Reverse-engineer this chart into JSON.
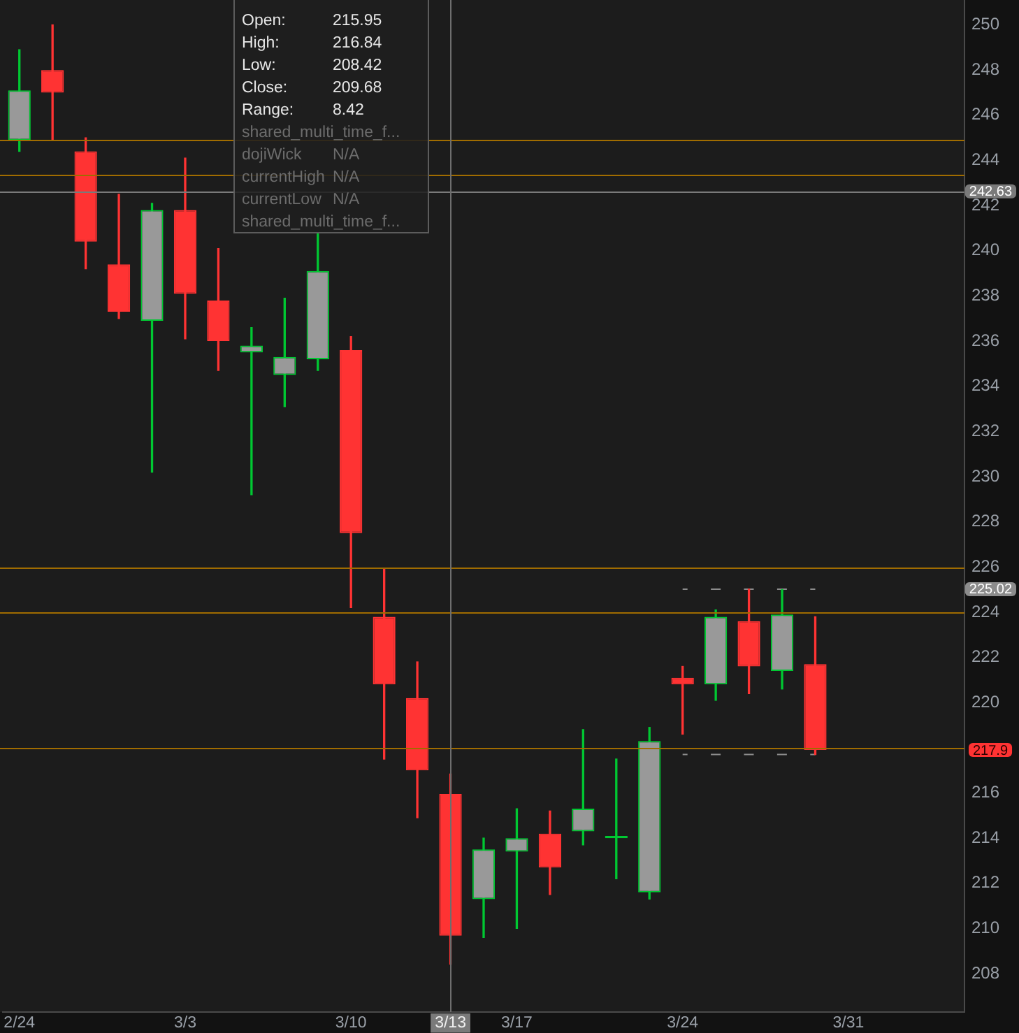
{
  "chart_data": {
    "type": "candlestick",
    "categories": [
      "2/24",
      null,
      null,
      null,
      null,
      "3/3",
      null,
      null,
      null,
      null,
      "3/10",
      null,
      null,
      "3/13",
      null,
      "3/17",
      null,
      null,
      null,
      null,
      "3/24",
      null,
      null,
      null,
      null,
      "3/31",
      null,
      null,
      null
    ],
    "ohlc": [
      [
        244.9,
        248.9,
        244.4,
        247.1
      ],
      [
        248.0,
        250.0,
        244.9,
        247.0
      ],
      [
        244.4,
        245.0,
        239.2,
        240.4
      ],
      [
        239.4,
        242.5,
        237.0,
        237.3
      ],
      [
        236.9,
        242.1,
        230.2,
        241.8
      ],
      [
        241.8,
        244.1,
        236.1,
        238.1
      ],
      [
        237.8,
        240.1,
        234.7,
        236.0
      ],
      [
        235.5,
        236.6,
        229.2,
        235.8
      ],
      [
        234.5,
        237.9,
        233.1,
        235.3
      ],
      [
        235.2,
        240.8,
        234.7,
        239.1
      ],
      [
        235.6,
        236.2,
        224.2,
        227.5
      ],
      [
        223.8,
        225.9,
        217.5,
        220.8
      ],
      [
        220.2,
        221.8,
        214.9,
        217.0
      ],
      [
        215.95,
        216.84,
        208.42,
        209.68
      ],
      [
        211.3,
        214.0,
        209.6,
        213.5
      ],
      [
        213.4,
        215.3,
        210.0,
        214.0
      ],
      [
        214.2,
        215.2,
        211.5,
        212.7
      ],
      [
        214.3,
        218.8,
        213.7,
        215.3
      ],
      [
        214.0,
        217.5,
        212.2,
        214.1
      ],
      [
        211.6,
        218.9,
        211.3,
        218.3
      ],
      [
        221.1,
        221.6,
        218.6,
        220.8
      ],
      [
        220.8,
        224.1,
        220.1,
        223.8
      ],
      [
        223.6,
        225.02,
        220.4,
        221.6
      ],
      [
        221.4,
        225.0,
        220.6,
        223.9
      ],
      [
        221.7,
        223.8,
        217.7,
        217.9
      ],
      null,
      null,
      null,
      null
    ],
    "colors": [
      "#00c832",
      "#ff3333",
      "#ff3333",
      "#ff3333",
      "#00c832",
      "#ff3333",
      "#ff3333",
      "#00c832",
      "#00c832",
      "#00c832",
      "#ff3333",
      "#ff3333",
      "#ff3333",
      "#ff3333",
      "#00c832",
      "#00c832",
      "#ff3333",
      "#00c832",
      "#00c832",
      "#00c832",
      "#ff3333",
      "#00c832",
      "#ff3333",
      "#00c832",
      "#ff3333",
      null,
      null,
      null,
      null
    ],
    "series": [
      {
        "type": "line",
        "color": "#8c8c8c",
        "line_style": "dashed",
        "values": [
          null,
          null,
          null,
          null,
          null,
          null,
          null,
          null,
          null,
          null,
          null,
          null,
          null,
          null,
          null,
          null,
          null,
          null,
          null,
          null,
          225.02,
          225.02,
          225.02,
          225.02,
          225.02,
          null,
          null,
          null,
          null
        ]
      },
      {
        "type": "line",
        "color": "#8c8c8c",
        "line_style": "dashed",
        "values": [
          null,
          null,
          null,
          null,
          null,
          null,
          null,
          null,
          null,
          null,
          null,
          null,
          null,
          null,
          null,
          null,
          null,
          null,
          null,
          null,
          217.7,
          217.7,
          217.7,
          217.7,
          217.7,
          null,
          null,
          null,
          null
        ]
      }
    ],
    "ylim": [
      206.3,
      251.1
    ],
    "yticks": [
      208,
      210,
      212,
      214,
      216,
      220,
      222,
      224,
      226,
      228,
      230,
      232,
      234,
      236,
      238,
      240,
      242,
      244,
      246,
      248,
      250
    ],
    "ref_lines": [
      {
        "axis": "y",
        "value": 244.9,
        "color": "#a06c00"
      },
      {
        "axis": "y",
        "value": 243.35,
        "color": "#a06c00"
      },
      {
        "axis": "y",
        "value": 226,
        "color": "#a06c00"
      },
      {
        "axis": "y",
        "value": 224,
        "color": "#a06c00"
      },
      {
        "axis": "y",
        "value": 218,
        "color": "#a06c00"
      },
      {
        "axis": "y",
        "value": 242.63,
        "label": "242.63",
        "color": "#7a7a7a"
      },
      {
        "axis": "x",
        "value": "3/13",
        "color": "#6e6e6e"
      }
    ],
    "annotations": [
      "225.02",
      {
        "text": "217.9",
        "y": 217.9
      },
      "Open:\t215.95",
      "High:\t216.84",
      "Low:\t208.42",
      "Close:\t209.68",
      "Range:\t8.42",
      "shared_multi_time_f...",
      "dojiWick\tN/A",
      "currentHigh\tN/A",
      "currentLow\tN/A",
      "shared_multi_time_f..."
    ]
  }
}
